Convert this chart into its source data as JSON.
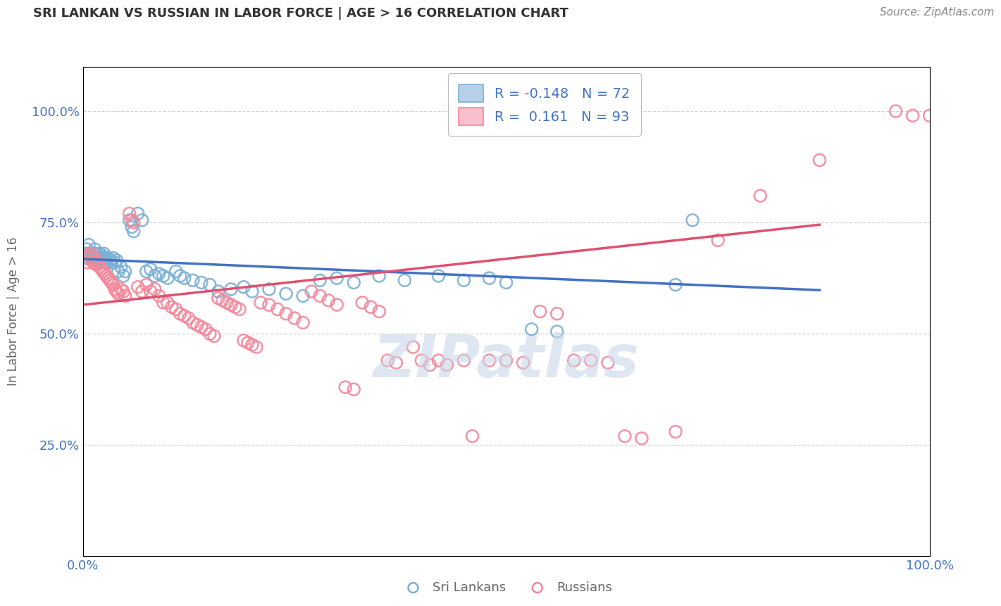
{
  "title": "SRI LANKAN VS RUSSIAN IN LABOR FORCE | AGE > 16 CORRELATION CHART",
  "source_text": "Source: ZipAtlas.com",
  "ylabel": "In Labor Force | Age > 16",
  "ytick_labels": [
    "25.0%",
    "50.0%",
    "75.0%",
    "100.0%"
  ],
  "ytick_values": [
    0.25,
    0.5,
    0.75,
    1.0
  ],
  "sri_lankan_color": "#7bafd4",
  "russian_color": "#f4879a",
  "sri_lankan_R": -0.148,
  "russian_R": 0.161,
  "sri_lankan_N": 72,
  "russian_N": 93,
  "background_color": "#ffffff",
  "grid_color": "#c8c8c8",
  "watermark_text": "ZIPatlas",
  "watermark_color": "#c8d8e8",
  "legend_label_sri": "Sri Lankans",
  "legend_label_rus": "Russians",
  "blue_trend": [
    0.0,
    0.668,
    0.87,
    0.598
  ],
  "pink_trend": [
    0.0,
    0.565,
    0.87,
    0.745
  ],
  "sri_lankan_points": [
    [
      0.002,
      0.675
    ],
    [
      0.003,
      0.68
    ],
    [
      0.004,
      0.67
    ],
    [
      0.005,
      0.69
    ],
    [
      0.006,
      0.68
    ],
    [
      0.007,
      0.7
    ],
    [
      0.008,
      0.675
    ],
    [
      0.009,
      0.68
    ],
    [
      0.01,
      0.67
    ],
    [
      0.011,
      0.665
    ],
    [
      0.012,
      0.67
    ],
    [
      0.013,
      0.68
    ],
    [
      0.014,
      0.69
    ],
    [
      0.015,
      0.68
    ],
    [
      0.016,
      0.67
    ],
    [
      0.017,
      0.665
    ],
    [
      0.018,
      0.67
    ],
    [
      0.019,
      0.66
    ],
    [
      0.02,
      0.68
    ],
    [
      0.021,
      0.67
    ],
    [
      0.022,
      0.66
    ],
    [
      0.023,
      0.675
    ],
    [
      0.024,
      0.67
    ],
    [
      0.025,
      0.68
    ],
    [
      0.026,
      0.67
    ],
    [
      0.027,
      0.66
    ],
    [
      0.028,
      0.665
    ],
    [
      0.03,
      0.67
    ],
    [
      0.032,
      0.665
    ],
    [
      0.034,
      0.66
    ],
    [
      0.036,
      0.67
    ],
    [
      0.038,
      0.66
    ],
    [
      0.04,
      0.665
    ],
    [
      0.042,
      0.64
    ],
    [
      0.045,
      0.65
    ],
    [
      0.048,
      0.63
    ],
    [
      0.05,
      0.64
    ],
    [
      0.055,
      0.755
    ],
    [
      0.058,
      0.74
    ],
    [
      0.06,
      0.73
    ],
    [
      0.065,
      0.77
    ],
    [
      0.07,
      0.755
    ],
    [
      0.075,
      0.64
    ],
    [
      0.08,
      0.645
    ],
    [
      0.085,
      0.63
    ],
    [
      0.09,
      0.635
    ],
    [
      0.095,
      0.63
    ],
    [
      0.1,
      0.625
    ],
    [
      0.11,
      0.64
    ],
    [
      0.115,
      0.63
    ],
    [
      0.12,
      0.625
    ],
    [
      0.13,
      0.62
    ],
    [
      0.14,
      0.615
    ],
    [
      0.15,
      0.61
    ],
    [
      0.16,
      0.595
    ],
    [
      0.175,
      0.6
    ],
    [
      0.19,
      0.605
    ],
    [
      0.2,
      0.595
    ],
    [
      0.22,
      0.6
    ],
    [
      0.24,
      0.59
    ],
    [
      0.26,
      0.585
    ],
    [
      0.28,
      0.62
    ],
    [
      0.3,
      0.625
    ],
    [
      0.32,
      0.615
    ],
    [
      0.35,
      0.63
    ],
    [
      0.38,
      0.62
    ],
    [
      0.42,
      0.63
    ],
    [
      0.45,
      0.62
    ],
    [
      0.48,
      0.625
    ],
    [
      0.5,
      0.615
    ],
    [
      0.53,
      0.51
    ],
    [
      0.56,
      0.505
    ],
    [
      0.7,
      0.61
    ],
    [
      0.72,
      0.755
    ]
  ],
  "russian_points": [
    [
      0.002,
      0.68
    ],
    [
      0.004,
      0.67
    ],
    [
      0.006,
      0.66
    ],
    [
      0.008,
      0.675
    ],
    [
      0.01,
      0.68
    ],
    [
      0.012,
      0.66
    ],
    [
      0.014,
      0.67
    ],
    [
      0.016,
      0.655
    ],
    [
      0.018,
      0.66
    ],
    [
      0.02,
      0.65
    ],
    [
      0.022,
      0.645
    ],
    [
      0.024,
      0.64
    ],
    [
      0.026,
      0.635
    ],
    [
      0.028,
      0.63
    ],
    [
      0.03,
      0.625
    ],
    [
      0.032,
      0.62
    ],
    [
      0.034,
      0.615
    ],
    [
      0.036,
      0.61
    ],
    [
      0.038,
      0.6
    ],
    [
      0.04,
      0.595
    ],
    [
      0.042,
      0.59
    ],
    [
      0.045,
      0.6
    ],
    [
      0.048,
      0.595
    ],
    [
      0.05,
      0.585
    ],
    [
      0.055,
      0.77
    ],
    [
      0.058,
      0.755
    ],
    [
      0.06,
      0.75
    ],
    [
      0.065,
      0.605
    ],
    [
      0.07,
      0.595
    ],
    [
      0.075,
      0.61
    ],
    [
      0.08,
      0.595
    ],
    [
      0.085,
      0.6
    ],
    [
      0.09,
      0.585
    ],
    [
      0.095,
      0.57
    ],
    [
      0.1,
      0.57
    ],
    [
      0.105,
      0.56
    ],
    [
      0.11,
      0.555
    ],
    [
      0.115,
      0.545
    ],
    [
      0.12,
      0.54
    ],
    [
      0.125,
      0.535
    ],
    [
      0.13,
      0.525
    ],
    [
      0.135,
      0.52
    ],
    [
      0.14,
      0.515
    ],
    [
      0.145,
      0.51
    ],
    [
      0.15,
      0.5
    ],
    [
      0.155,
      0.495
    ],
    [
      0.16,
      0.58
    ],
    [
      0.165,
      0.575
    ],
    [
      0.17,
      0.57
    ],
    [
      0.175,
      0.565
    ],
    [
      0.18,
      0.56
    ],
    [
      0.185,
      0.555
    ],
    [
      0.19,
      0.485
    ],
    [
      0.195,
      0.48
    ],
    [
      0.2,
      0.475
    ],
    [
      0.205,
      0.47
    ],
    [
      0.21,
      0.57
    ],
    [
      0.22,
      0.565
    ],
    [
      0.23,
      0.555
    ],
    [
      0.24,
      0.545
    ],
    [
      0.25,
      0.535
    ],
    [
      0.26,
      0.525
    ],
    [
      0.27,
      0.595
    ],
    [
      0.28,
      0.585
    ],
    [
      0.29,
      0.575
    ],
    [
      0.3,
      0.565
    ],
    [
      0.31,
      0.38
    ],
    [
      0.32,
      0.375
    ],
    [
      0.33,
      0.57
    ],
    [
      0.34,
      0.56
    ],
    [
      0.35,
      0.55
    ],
    [
      0.36,
      0.44
    ],
    [
      0.37,
      0.435
    ],
    [
      0.39,
      0.47
    ],
    [
      0.4,
      0.44
    ],
    [
      0.41,
      0.43
    ],
    [
      0.42,
      0.44
    ],
    [
      0.43,
      0.43
    ],
    [
      0.45,
      0.44
    ],
    [
      0.46,
      0.27
    ],
    [
      0.48,
      0.44
    ],
    [
      0.5,
      0.44
    ],
    [
      0.52,
      0.435
    ],
    [
      0.54,
      0.55
    ],
    [
      0.56,
      0.545
    ],
    [
      0.58,
      0.44
    ],
    [
      0.6,
      0.44
    ],
    [
      0.62,
      0.435
    ],
    [
      0.64,
      0.27
    ],
    [
      0.66,
      0.265
    ],
    [
      0.7,
      0.28
    ],
    [
      0.75,
      0.71
    ],
    [
      0.8,
      0.81
    ],
    [
      0.87,
      0.89
    ],
    [
      0.96,
      1.0
    ],
    [
      0.98,
      0.99
    ],
    [
      1.0,
      0.99
    ]
  ]
}
